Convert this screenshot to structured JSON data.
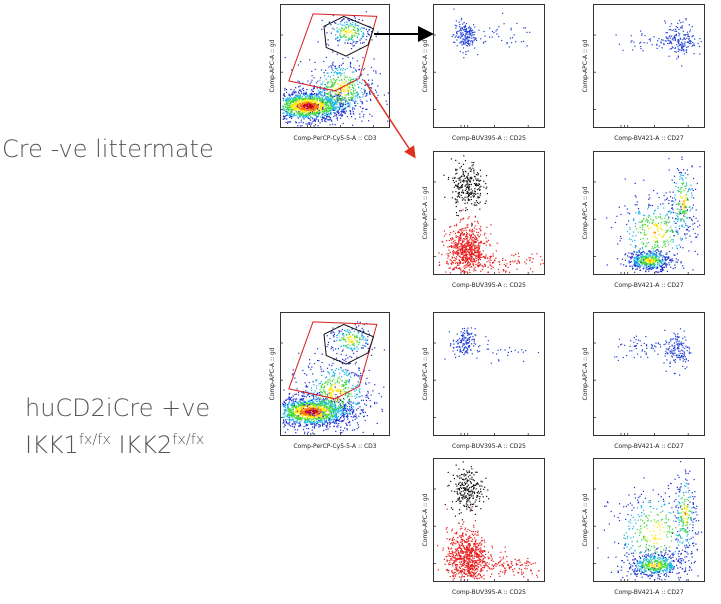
{
  "rows": [
    {
      "label_lines": [
        [
          {
            "t": "Cre -ve littermate"
          }
        ]
      ]
    },
    {
      "label_lines": [
        [
          {
            "t": "huCD2iCre +ve"
          }
        ],
        [
          {
            "t": "IKK1"
          },
          {
            "t": "fx/fx",
            "sup": true
          },
          {
            "t": " IKK2"
          },
          {
            "t": "fx/fx",
            "sup": true
          }
        ]
      ]
    }
  ],
  "chart_data": [
    {
      "id": "r1-cd3",
      "type": "scatter",
      "density": true,
      "xlabel": "Comp-PerCP-Cy5-5-A :: CD3",
      "ylabel": "Comp-APC-A :: gd",
      "x_axis": "logicle",
      "y_axis": "logicle",
      "gates": [
        "red-polygon",
        "black-polygon"
      ],
      "populations": [
        {
          "color": "density",
          "center": [
            0.25,
            0.18
          ],
          "spread": [
            0.18,
            0.06
          ],
          "n": 1400
        },
        {
          "color": "density",
          "center": [
            0.55,
            0.32
          ],
          "spread": [
            0.15,
            0.12
          ],
          "n": 500
        },
        {
          "color": "density",
          "center": [
            0.62,
            0.78
          ],
          "spread": [
            0.1,
            0.06
          ],
          "n": 200
        }
      ]
    },
    {
      "id": "r1-cd25-gd",
      "type": "scatter",
      "xlabel": "Comp-BUV395-A :: CD25",
      "ylabel": "Comp-APC-A :: gd",
      "populations": [
        {
          "color": "#1f3fd6",
          "center": [
            0.28,
            0.75
          ],
          "spread": [
            0.05,
            0.06
          ],
          "n": 170
        },
        {
          "color": "#1f3fd6",
          "center": [
            0.55,
            0.75
          ],
          "spread": [
            0.18,
            0.05
          ],
          "n": 40
        }
      ]
    },
    {
      "id": "r1-cd27-gd",
      "type": "scatter",
      "xlabel": "Comp-BV421-A :: CD27",
      "ylabel": "Comp-APC-A :: gd",
      "populations": [
        {
          "color": "#1f3fd6",
          "center": [
            0.78,
            0.72
          ],
          "spread": [
            0.07,
            0.07
          ],
          "n": 170
        },
        {
          "color": "#1f3fd6",
          "center": [
            0.5,
            0.7
          ],
          "spread": [
            0.15,
            0.04
          ],
          "n": 40
        }
      ]
    },
    {
      "id": "r1-cd25-gd-overlay",
      "type": "scatter",
      "xlabel": "Comp-BUV395-A :: CD25",
      "ylabel": "Comp-APC-A :: gd",
      "populations": [
        {
          "color": "#111111",
          "center": [
            0.3,
            0.72
          ],
          "spread": [
            0.07,
            0.1
          ],
          "n": 260
        },
        {
          "color": "#e81e1e",
          "center": [
            0.3,
            0.2
          ],
          "spread": [
            0.09,
            0.1
          ],
          "n": 700
        },
        {
          "color": "#e81e1e",
          "center": [
            0.65,
            0.1
          ],
          "spread": [
            0.18,
            0.04
          ],
          "n": 90
        }
      ]
    },
    {
      "id": "r1-cd27-gd-all",
      "type": "scatter",
      "density": true,
      "xlabel": "Comp-BV421-A :: CD27",
      "ylabel": "Comp-APC-A :: gd",
      "populations": [
        {
          "color": "density",
          "center": [
            0.5,
            0.12
          ],
          "spread": [
            0.1,
            0.04
          ],
          "n": 450
        },
        {
          "color": "density",
          "center": [
            0.55,
            0.35
          ],
          "spread": [
            0.18,
            0.15
          ],
          "n": 350
        },
        {
          "color": "density",
          "center": [
            0.8,
            0.6
          ],
          "spread": [
            0.06,
            0.16
          ],
          "n": 200
        }
      ]
    },
    {
      "id": "r2-cd3",
      "type": "scatter",
      "density": true,
      "xlabel": "Comp-PerCP-Cy5-5-A :: CD3",
      "ylabel": "Comp-APC-A :: gd",
      "x_axis": "logicle",
      "y_axis": "logicle",
      "gates": [
        "red-polygon",
        "black-polygon"
      ],
      "populations": [
        {
          "color": "density",
          "center": [
            0.28,
            0.2
          ],
          "spread": [
            0.18,
            0.06
          ],
          "n": 1400
        },
        {
          "color": "density",
          "center": [
            0.5,
            0.35
          ],
          "spread": [
            0.16,
            0.14
          ],
          "n": 550
        },
        {
          "color": "density",
          "center": [
            0.64,
            0.78
          ],
          "spread": [
            0.1,
            0.06
          ],
          "n": 180
        }
      ]
    },
    {
      "id": "r2-cd25-gd",
      "type": "scatter",
      "xlabel": "Comp-BUV395-A :: CD25",
      "ylabel": "Comp-APC-A :: gd",
      "populations": [
        {
          "color": "#1f3fd6",
          "center": [
            0.27,
            0.75
          ],
          "spread": [
            0.05,
            0.06
          ],
          "n": 140
        },
        {
          "color": "#1f3fd6",
          "center": [
            0.6,
            0.7
          ],
          "spread": [
            0.15,
            0.05
          ],
          "n": 30
        }
      ]
    },
    {
      "id": "r2-cd27-gd",
      "type": "scatter",
      "xlabel": "Comp-BV421-A :: CD27",
      "ylabel": "Comp-APC-A :: gd",
      "populations": [
        {
          "color": "#1f3fd6",
          "center": [
            0.75,
            0.7
          ],
          "spread": [
            0.06,
            0.08
          ],
          "n": 140
        },
        {
          "color": "#1f3fd6",
          "center": [
            0.45,
            0.72
          ],
          "spread": [
            0.14,
            0.05
          ],
          "n": 60
        }
      ]
    },
    {
      "id": "r2-cd25-gd-overlay",
      "type": "scatter",
      "xlabel": "Comp-BUV395-A :: CD25",
      "ylabel": "Comp-APC-A :: gd",
      "populations": [
        {
          "color": "#111111",
          "center": [
            0.3,
            0.75
          ],
          "spread": [
            0.07,
            0.09
          ],
          "n": 240
        },
        {
          "color": "#e81e1e",
          "center": [
            0.3,
            0.2
          ],
          "spread": [
            0.09,
            0.11
          ],
          "n": 750
        },
        {
          "color": "#e81e1e",
          "center": [
            0.7,
            0.12
          ],
          "spread": [
            0.15,
            0.05
          ],
          "n": 110
        }
      ]
    },
    {
      "id": "r2-cd27-gd-all",
      "type": "scatter",
      "density": true,
      "xlabel": "Comp-BV421-A :: CD27",
      "ylabel": "Comp-APC-A :: gd",
      "populations": [
        {
          "color": "density",
          "center": [
            0.55,
            0.14
          ],
          "spread": [
            0.12,
            0.05
          ],
          "n": 500
        },
        {
          "color": "density",
          "center": [
            0.55,
            0.4
          ],
          "spread": [
            0.2,
            0.18
          ],
          "n": 350
        },
        {
          "color": "density",
          "center": [
            0.82,
            0.55
          ],
          "spread": [
            0.05,
            0.18
          ],
          "n": 200
        }
      ]
    }
  ],
  "arrows": [
    {
      "from": "r1-cd3",
      "to": "r1-cd25-gd",
      "color": "#000000"
    },
    {
      "from": "r1-cd3",
      "to": "r1-cd25-gd-overlay",
      "color": "#e0301e"
    }
  ]
}
